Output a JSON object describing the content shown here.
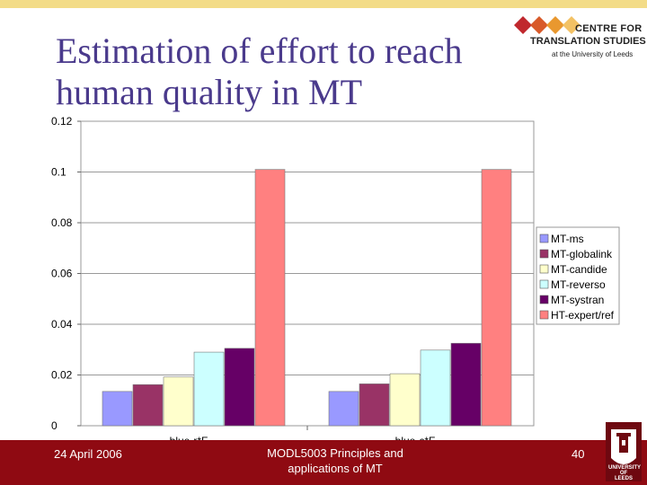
{
  "slide": {
    "title_line1": "Estimation of effort to reach",
    "title_line2": "human quality in MT"
  },
  "logo": {
    "line1": "CENTRE FOR",
    "line2": "TRANSLATION STUDIES",
    "line3": "at the University of Leeds",
    "colors": [
      "#c0282e",
      "#e07a2a",
      "#f3b045"
    ]
  },
  "footer": {
    "date": "24 April 2006",
    "course_line1": "MODL5003 Principles and",
    "course_line2": "applications of MT",
    "page": "40",
    "background": "#8f0a12"
  },
  "crest": {
    "line1": "UNIVERSITY OF",
    "line2": "LEEDS"
  },
  "chart_data": {
    "type": "bar",
    "categories": [
      "blue-r*F",
      "blue-c*F"
    ],
    "series": [
      {
        "name": "MT-ms",
        "values": [
          0.0135,
          0.0135
        ],
        "color": "#9999ff"
      },
      {
        "name": "MT-globalink",
        "values": [
          0.0162,
          0.0165
        ],
        "color": "#993366"
      },
      {
        "name": "MT-candide",
        "values": [
          0.0192,
          0.0205
        ],
        "color": "#ffffcc"
      },
      {
        "name": "MT-reverso",
        "values": [
          0.029,
          0.0298
        ],
        "color": "#ccffff"
      },
      {
        "name": "MT-systran",
        "values": [
          0.0305,
          0.0325
        ],
        "color": "#660066"
      },
      {
        "name": "HT-expert/ref",
        "values": [
          0.101,
          0.101
        ],
        "color": "#ff8080"
      }
    ],
    "ylim": [
      0,
      0.12
    ],
    "yticks": [
      "0",
      "0.02",
      "0.04",
      "0.06",
      "0.08",
      "0.1",
      "0.12"
    ],
    "grid": true,
    "legend_position": "right",
    "title": "",
    "xlabel": "",
    "ylabel": ""
  }
}
